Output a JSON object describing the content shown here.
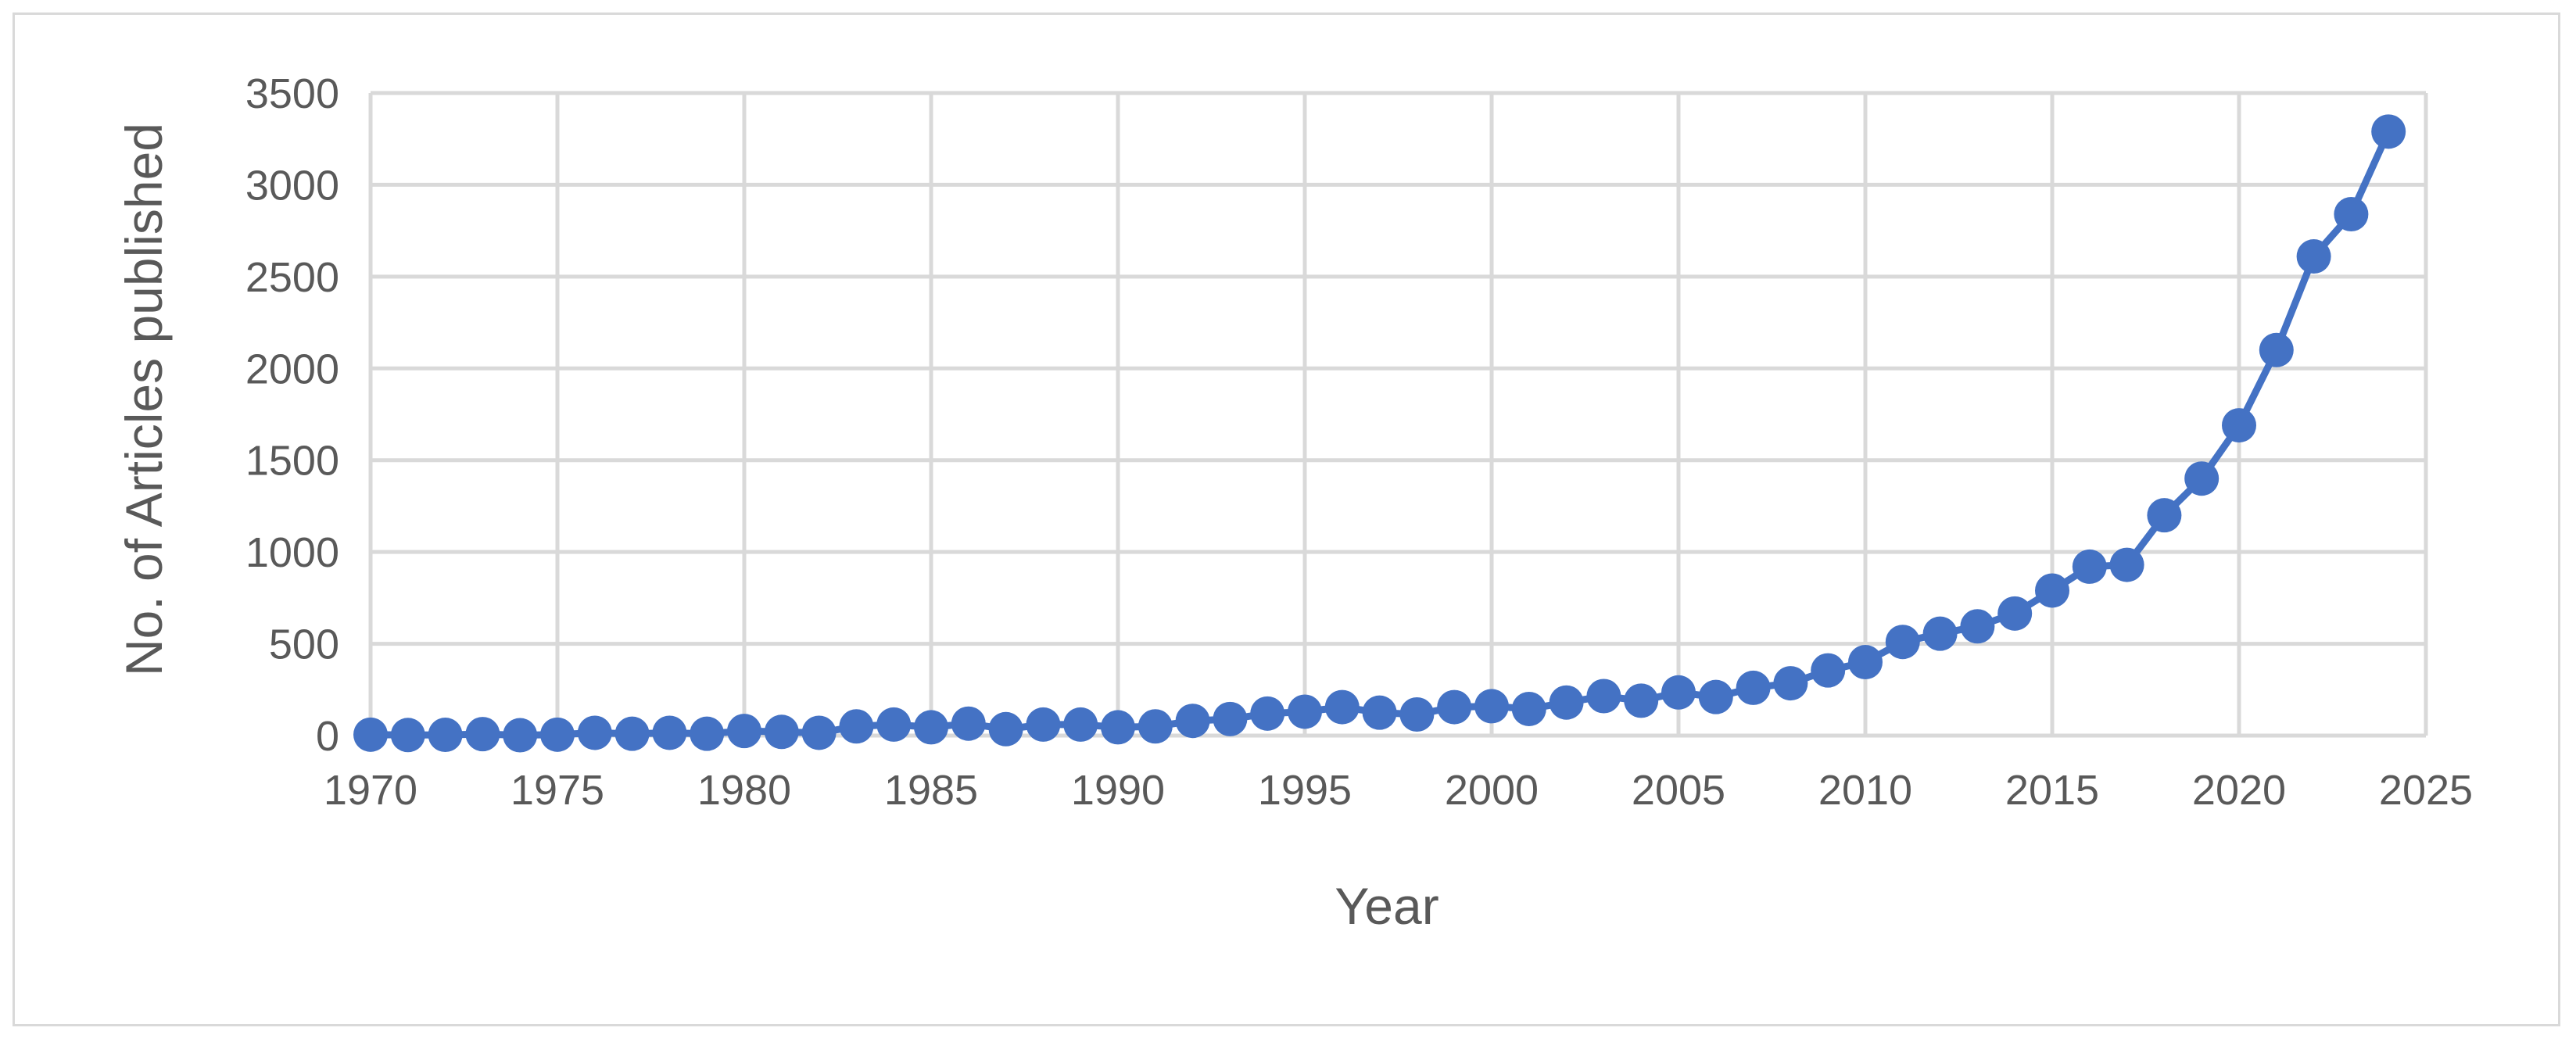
{
  "chart_data": {
    "type": "scatter",
    "title": "",
    "xlabel": "Year",
    "ylabel": "No. of Articles published",
    "xlim": [
      1970,
      2025
    ],
    "ylim": [
      0,
      3500
    ],
    "x_ticks": [
      1970,
      1975,
      1980,
      1985,
      1990,
      1995,
      2000,
      2005,
      2010,
      2015,
      2020,
      2025
    ],
    "y_ticks": [
      0,
      500,
      1000,
      1500,
      2000,
      2500,
      3000,
      3500
    ],
    "grid": true,
    "legend": "none",
    "color": "#4472c4",
    "line_connected": true,
    "series": [
      {
        "x": [
          1970,
          1971,
          1972,
          1973,
          1974,
          1975,
          1976,
          1977,
          1978,
          1979,
          1980,
          1981,
          1982,
          1983,
          1984,
          1985,
          1986,
          1987,
          1988,
          1989,
          1990,
          1991,
          1992,
          1993,
          1994,
          1995,
          1996,
          1997,
          1998,
          1999,
          2000,
          2001,
          2002,
          2003,
          2004,
          2005,
          2006,
          2007,
          2008,
          2009,
          2010,
          2011,
          2012,
          2013,
          2014,
          2015,
          2016,
          2017,
          2018,
          2019,
          2020,
          2021,
          2022,
          2023,
          2024
        ],
        "y": [
          5,
          3,
          4,
          8,
          2,
          5,
          15,
          10,
          15,
          10,
          25,
          20,
          15,
          50,
          60,
          45,
          65,
          35,
          60,
          60,
          45,
          50,
          80,
          90,
          120,
          130,
          155,
          125,
          115,
          155,
          160,
          145,
          180,
          215,
          190,
          235,
          210,
          260,
          285,
          355,
          400,
          510,
          555,
          595,
          665,
          790,
          920,
          930,
          1200,
          1400,
          1690,
          2100,
          2610,
          2840,
          3290
        ]
      }
    ]
  }
}
